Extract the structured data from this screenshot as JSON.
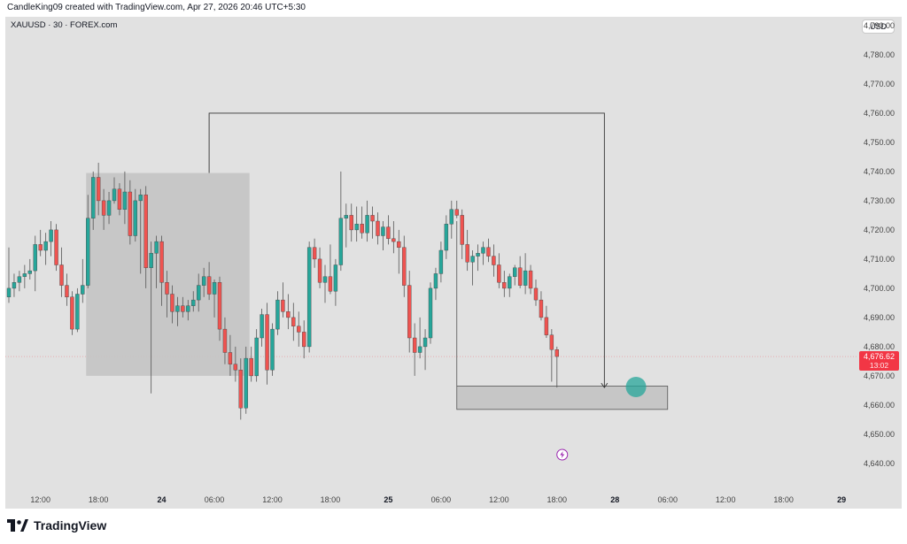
{
  "header": {
    "attribution": "CandleKing09 created with TradingView.com, Apr 27, 2026 20:46 UTC+5:30"
  },
  "symbol": {
    "label": "XAUUSD · 30 · FOREX.com"
  },
  "currency": {
    "label": "USD"
  },
  "price": {
    "current": "4,676.62",
    "countdown": "13:02"
  },
  "brand": {
    "name": "TradingView",
    "logo_icon": "tradingview-logo-icon"
  },
  "colors": {
    "up": "#26a69a",
    "down": "#ef5350",
    "box": "#c4c4c4",
    "tag": "#f23645",
    "background": "#e1e1e1"
  },
  "chart_data": {
    "type": "candlestick",
    "title": "",
    "symbol": "XAUUSD",
    "timeframe": "30",
    "y_axis": {
      "ylim": [
        4635,
        4793
      ],
      "ticks": [
        "4,640.00",
        "4,650.00",
        "4,660.00",
        "4,670.00",
        "4,680.00",
        "4,690.00",
        "4,700.00",
        "4,710.00",
        "4,720.00",
        "4,730.00",
        "4,740.00",
        "4,750.00",
        "4,760.00",
        "4,770.00",
        "4,780.00",
        "4,790.00"
      ],
      "tick_values": [
        4640,
        4650,
        4660,
        4670,
        4680,
        4690,
        4700,
        4710,
        4720,
        4730,
        4740,
        4750,
        4760,
        4770,
        4780,
        4790
      ]
    },
    "x_axis": {
      "ticks": [
        {
          "label": "12:00",
          "bar": 6,
          "bold": false
        },
        {
          "label": "18:00",
          "bar": 17,
          "bold": false
        },
        {
          "label": "24",
          "bar": 29,
          "bold": true
        },
        {
          "label": "06:00",
          "bar": 39,
          "bold": false
        },
        {
          "label": "12:00",
          "bar": 50,
          "bold": false
        },
        {
          "label": "18:00",
          "bar": 61,
          "bold": false
        },
        {
          "label": "25",
          "bar": 72,
          "bold": true
        },
        {
          "label": "06:00",
          "bar": 82,
          "bold": false
        },
        {
          "label": "12:00",
          "bar": 93,
          "bold": false
        },
        {
          "label": "18:00",
          "bar": 104,
          "bold": false
        },
        {
          "label": "28",
          "bar": 115,
          "bold": true
        },
        {
          "label": "06:00",
          "bar": 125,
          "bold": false
        },
        {
          "label": "12:00",
          "bar": 136,
          "bold": false
        },
        {
          "label": "18:00",
          "bar": 147,
          "bold": false
        },
        {
          "label": "29",
          "bar": 158,
          "bold": true
        }
      ]
    },
    "current_price": 4676.62,
    "candles": [
      [
        4697,
        4714,
        4695,
        4700
      ],
      [
        4700,
        4705,
        4697,
        4702
      ],
      [
        4702,
        4706,
        4699,
        4704
      ],
      [
        4704,
        4708,
        4700,
        4705
      ],
      [
        4705,
        4710,
        4703,
        4706
      ],
      [
        4706,
        4718,
        4699,
        4715
      ],
      [
        4715,
        4720,
        4711,
        4713
      ],
      [
        4713,
        4719,
        4708,
        4716
      ],
      [
        4716,
        4723,
        4711,
        4720
      ],
      [
        4720,
        4722,
        4706,
        4708
      ],
      [
        4708,
        4714,
        4697,
        4701
      ],
      [
        4701,
        4705,
        4694,
        4697
      ],
      [
        4697,
        4699,
        4684,
        4686
      ],
      [
        4686,
        4700,
        4685,
        4698
      ],
      [
        4698,
        4710,
        4695,
        4701
      ],
      [
        4701,
        4732,
        4700,
        4724
      ],
      [
        4724,
        4740,
        4720,
        4738
      ],
      [
        4738,
        4743,
        4725,
        4730
      ],
      [
        4730,
        4734,
        4720,
        4725
      ],
      [
        4725,
        4733,
        4722,
        4730
      ],
      [
        4730,
        4738,
        4729,
        4734
      ],
      [
        4734,
        4736,
        4725,
        4727
      ],
      [
        4727,
        4740,
        4722,
        4733
      ],
      [
        4733,
        4737,
        4715,
        4718
      ],
      [
        4718,
        4734,
        4716,
        4730
      ],
      [
        4730,
        4734,
        4705,
        4732
      ],
      [
        4732,
        4735,
        4700,
        4707
      ],
      [
        4707,
        4716,
        4664,
        4712
      ],
      [
        4712,
        4718,
        4700,
        4716
      ],
      [
        4716,
        4718,
        4694,
        4702
      ],
      [
        4702,
        4706,
        4690,
        4698
      ],
      [
        4698,
        4701,
        4688,
        4692
      ],
      [
        4692,
        4697,
        4687,
        4694
      ],
      [
        4694,
        4697,
        4690,
        4692
      ],
      [
        4692,
        4696,
        4689,
        4694
      ],
      [
        4694,
        4699,
        4692,
        4696
      ],
      [
        4696,
        4705,
        4692,
        4701
      ],
      [
        4701,
        4707,
        4697,
        4704
      ],
      [
        4704,
        4709,
        4696,
        4698
      ],
      [
        4698,
        4703,
        4690,
        4702
      ],
      [
        4702,
        4704,
        4682,
        4686
      ],
      [
        4686,
        4690,
        4674,
        4678
      ],
      [
        4678,
        4684,
        4670,
        4674
      ],
      [
        4674,
        4680,
        4668,
        4672
      ],
      [
        4672,
        4676,
        4655,
        4659
      ],
      [
        4659,
        4680,
        4657,
        4676
      ],
      [
        4676,
        4680,
        4668,
        4670
      ],
      [
        4670,
        4686,
        4668,
        4683
      ],
      [
        4683,
        4693,
        4680,
        4691
      ],
      [
        4691,
        4695,
        4667,
        4672
      ],
      [
        4672,
        4688,
        4670,
        4686
      ],
      [
        4686,
        4699,
        4684,
        4696
      ],
      [
        4696,
        4702,
        4690,
        4692
      ],
      [
        4692,
        4698,
        4686,
        4690
      ],
      [
        4690,
        4695,
        4682,
        4687
      ],
      [
        4687,
        4692,
        4680,
        4685
      ],
      [
        4685,
        4689,
        4676,
        4680
      ],
      [
        4680,
        4716,
        4678,
        4714
      ],
      [
        4714,
        4717,
        4707,
        4710
      ],
      [
        4710,
        4714,
        4700,
        4702
      ],
      [
        4702,
        4708,
        4695,
        4704
      ],
      [
        4704,
        4715,
        4698,
        4699
      ],
      [
        4699,
        4710,
        4694,
        4708
      ],
      [
        4708,
        4740,
        4706,
        4724
      ],
      [
        4724,
        4729,
        4714,
        4725
      ],
      [
        4725,
        4729,
        4716,
        4720
      ],
      [
        4720,
        4728,
        4716,
        4722
      ],
      [
        4722,
        4728,
        4717,
        4719
      ],
      [
        4719,
        4730,
        4716,
        4725
      ],
      [
        4725,
        4728,
        4717,
        4723
      ],
      [
        4723,
        4726,
        4715,
        4718
      ],
      [
        4718,
        4723,
        4713,
        4721
      ],
      [
        4721,
        4725,
        4715,
        4717
      ],
      [
        4717,
        4723,
        4712,
        4716
      ],
      [
        4716,
        4720,
        4705,
        4714
      ],
      [
        4714,
        4718,
        4697,
        4701
      ],
      [
        4701,
        4706,
        4678,
        4683
      ],
      [
        4683,
        4688,
        4670,
        4678
      ],
      [
        4678,
        4690,
        4676,
        4680
      ],
      [
        4680,
        4686,
        4672,
        4683
      ],
      [
        4683,
        4702,
        4681,
        4700
      ],
      [
        4700,
        4707,
        4696,
        4705
      ],
      [
        4705,
        4716,
        4702,
        4713
      ],
      [
        4713,
        4725,
        4710,
        4722
      ],
      [
        4722,
        4730,
        4717,
        4727
      ],
      [
        4727,
        4730,
        4724,
        4725
      ],
      [
        4725,
        4727,
        4710,
        4715
      ],
      [
        4715,
        4720,
        4706,
        4709
      ],
      [
        4709,
        4713,
        4701,
        4711
      ],
      [
        4711,
        4715,
        4706,
        4712
      ],
      [
        4712,
        4716,
        4708,
        4714
      ],
      [
        4714,
        4717,
        4709,
        4711
      ],
      [
        4711,
        4715,
        4704,
        4708
      ],
      [
        4708,
        4712,
        4700,
        4702
      ],
      [
        4702,
        4706,
        4697,
        4700
      ],
      [
        4700,
        4705,
        4697,
        4704
      ],
      [
        4704,
        4708,
        4701,
        4707
      ],
      [
        4707,
        4711,
        4700,
        4701
      ],
      [
        4701,
        4712,
        4698,
        4706
      ],
      [
        4706,
        4708,
        4698,
        4700
      ],
      [
        4700,
        4703,
        4694,
        4696
      ],
      [
        4696,
        4699,
        4689,
        4690
      ],
      [
        4690,
        4694,
        4683,
        4684
      ],
      [
        4684,
        4686,
        4668,
        4679
      ],
      [
        4679,
        4680,
        4666,
        4676.62
      ]
    ],
    "annotations": {
      "rect_left": {
        "bar_start": 15,
        "bar_end": 46,
        "price_top": 4739.5,
        "price_bottom": 4670
      },
      "rect_target": {
        "bar_start": 85,
        "bar_end": 125,
        "price_top": 4666.5,
        "price_bottom": 4658.5
      },
      "bracket_path": {
        "bar_start": 38,
        "bar_end": 113,
        "price_start": 4739.5,
        "price_top": 4760,
        "price_end": 4666
      },
      "marker": {
        "bar": 119,
        "price": 4666.2
      },
      "vline": {
        "bar": 85,
        "price_top": 4723,
        "price_bottom": 4666.5
      },
      "lightning_bar": 105,
      "lightning_price": 4643
    }
  }
}
